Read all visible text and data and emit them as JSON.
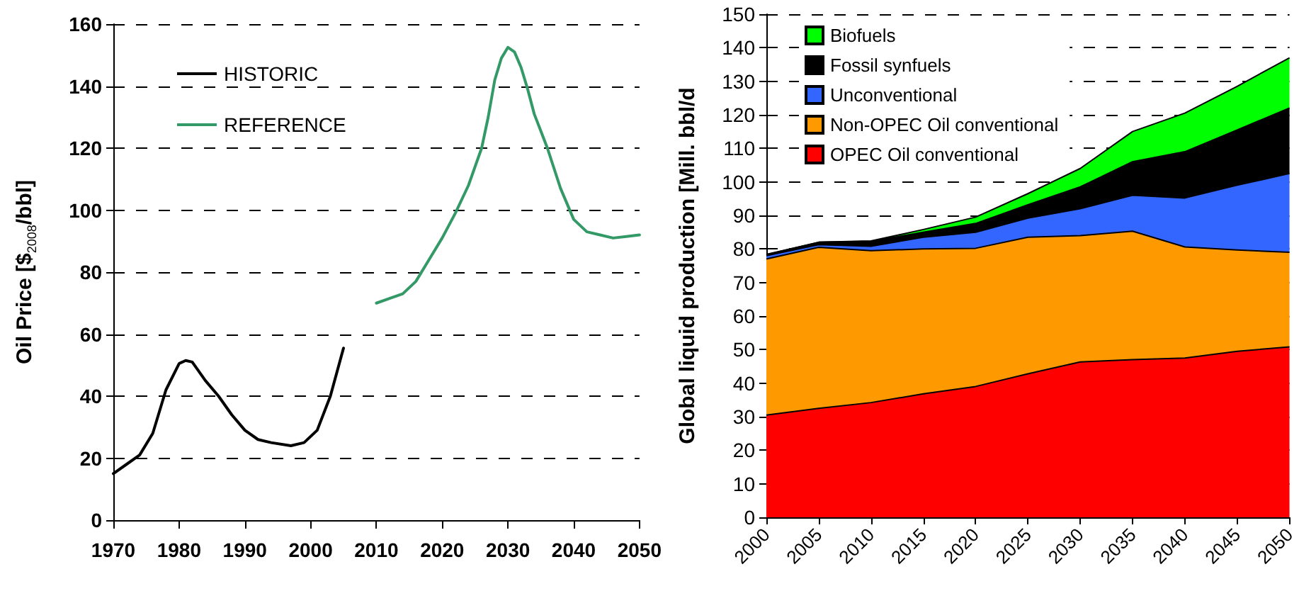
{
  "chart_data": [
    {
      "type": "line",
      "ylabel": "Oil Price [$$_{2008}$/bbl]",
      "xlim": [
        1970,
        2050
      ],
      "xticks": [
        1970,
        1980,
        1990,
        2000,
        2010,
        2020,
        2030,
        2040,
        2050
      ],
      "ylim": [
        0,
        160
      ],
      "yticks": [
        0,
        20,
        40,
        60,
        80,
        100,
        120,
        140,
        160
      ],
      "grid": "y",
      "legend": "top left",
      "marker": "none",
      "line_style": "solid",
      "series": [
        {
          "name": "HISTORIC",
          "color": "#000000",
          "x": [
            1970,
            1972,
            1974,
            1976,
            1978,
            1980,
            1981,
            1982,
            1984,
            1986,
            1988,
            1990,
            1992,
            1994,
            1997,
            1999,
            2001,
            2003,
            2005
          ],
          "values": [
            15,
            18,
            21,
            28,
            42,
            50.5,
            51.5,
            51,
            45,
            40,
            34,
            29,
            26,
            25,
            24,
            25,
            29,
            40,
            55.5
          ]
        },
        {
          "name": "REFERENCE",
          "color": "#339966",
          "x": [
            2010,
            2012,
            2014,
            2016,
            2018,
            2020,
            2022,
            2024,
            2026,
            2027,
            2028,
            2029,
            2030,
            2031,
            2032,
            2033,
            2034,
            2036,
            2038,
            2040,
            2042,
            2044,
            2046,
            2048,
            2050
          ],
          "values": [
            70,
            71.5,
            73,
            77,
            84,
            91,
            99,
            108,
            120,
            130,
            142,
            149,
            152.5,
            151,
            146,
            139,
            131,
            120,
            107,
            97,
            93,
            92,
            91,
            91.5,
            92
          ]
        }
      ]
    },
    {
      "type": "area",
      "stacked": true,
      "ylabel": "Global liquid production [Mill. bbl/d",
      "categories": [
        "2000",
        "2005",
        "2010",
        "2015",
        "2020",
        "2025",
        "2030",
        "2035",
        "2040",
        "2045",
        "2050"
      ],
      "ylim": [
        0,
        150
      ],
      "yticks": [
        0,
        10,
        20,
        30,
        40,
        50,
        60,
        70,
        80,
        90,
        100,
        110,
        120,
        130,
        140,
        150
      ],
      "grid": "y",
      "legend": "top left",
      "series": [
        {
          "name": "OPEC Oil conventional",
          "color": "#ff0000",
          "values": [
            30.5,
            32.5,
            34.2,
            36.8,
            39,
            42.8,
            46.3,
            47,
            47.5,
            49.5,
            50.8
          ]
        },
        {
          "name": "Non-OPEC Oil conventional",
          "color": "#ff9900",
          "values": [
            46.5,
            48,
            45.3,
            43.2,
            41.2,
            40.7,
            37.7,
            38.3,
            33.1,
            30.2,
            28.2
          ]
        },
        {
          "name": "Unconventional",
          "color": "#3366ff",
          "values": [
            1,
            0.8,
            1.3,
            3.5,
            4.8,
            5.7,
            8,
            10.7,
            14.6,
            19.3,
            23.5
          ]
        },
        {
          "name": "Fossil synfuels",
          "color": "#000000",
          "values": [
            0.3,
            0.7,
            1.5,
            1.5,
            2.6,
            4,
            6.5,
            10,
            13.8,
            16.5,
            19.5
          ]
        },
        {
          "name": "Biofuels",
          "color": "#00ff00",
          "values": [
            0.1,
            0,
            0.1,
            0.8,
            1.9,
            3.3,
            5.5,
            9,
            11.5,
            13,
            15
          ]
        }
      ]
    }
  ]
}
